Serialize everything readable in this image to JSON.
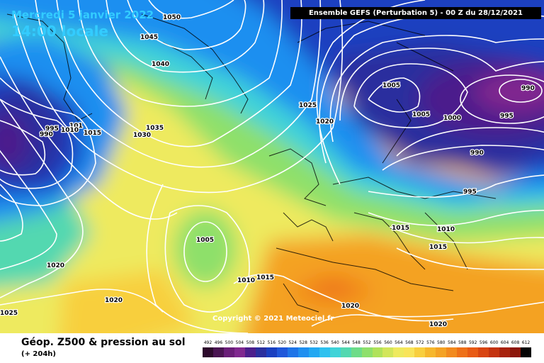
{
  "header": {
    "date": "Mercredi 5 janvier 2022",
    "time": "14:00 locale",
    "run": "Ensemble GEFS  (Perturbation 5)  -  00 Z du 28/12/2021"
  },
  "copyright": "Copyright © 2021 Meteociel.fr",
  "footer": {
    "title": "Géop. Z500 & pression au sol",
    "subtitle": "(+ 204h)"
  },
  "legend": {
    "levels": [
      "492",
      "496",
      "500",
      "504",
      "508",
      "512",
      "516",
      "520",
      "524",
      "528",
      "532",
      "536",
      "540",
      "544",
      "548",
      "552",
      "556",
      "560",
      "564",
      "568",
      "572",
      "576",
      "580",
      "584",
      "588",
      "592",
      "596",
      "600",
      "604",
      "608",
      "612"
    ],
    "colors": [
      "#2d0a2c",
      "#4a1452",
      "#6a1e78",
      "#80288f",
      "#4c1f8c",
      "#2a2f9e",
      "#1a3fc0",
      "#1f57da",
      "#1e74e8",
      "#1f8ff0",
      "#22a8f2",
      "#2ec1ef",
      "#3fd3d8",
      "#52d8b0",
      "#6ddc88",
      "#8ee06b",
      "#b0e25a",
      "#d2e65a",
      "#eeea5e",
      "#f8e45a",
      "#f8cf3e",
      "#f6b72c",
      "#f4a224",
      "#f28a1e",
      "#ee7018",
      "#e85a14",
      "#d84410",
      "#c4320e",
      "#a8220c",
      "#8c160a",
      "#050505"
    ]
  },
  "isobars": [
    {
      "label": "1050"
    },
    {
      "label": "1045"
    },
    {
      "label": "1040"
    },
    {
      "label": "1035"
    },
    {
      "label": "1030"
    },
    {
      "label": "1015"
    },
    {
      "label": "101"
    },
    {
      "label": "1010"
    },
    {
      "label": "995"
    },
    {
      "label": "990"
    },
    {
      "label": "1005"
    },
    {
      "label": "1025"
    },
    {
      "label": "1020"
    },
    {
      "label": "1005"
    },
    {
      "label": "1005"
    },
    {
      "label": "1000"
    },
    {
      "label": "990"
    },
    {
      "label": "995"
    },
    {
      "label": "990"
    },
    {
      "label": "995"
    },
    {
      "label": "1015"
    },
    {
      "label": "1010"
    },
    {
      "label": "1015"
    },
    {
      "label": "1020"
    },
    {
      "label": "1020"
    },
    {
      "label": "1010"
    },
    {
      "label": "1015"
    },
    {
      "label": "1020"
    },
    {
      "label": "1025"
    },
    {
      "label": "1020"
    }
  ]
}
